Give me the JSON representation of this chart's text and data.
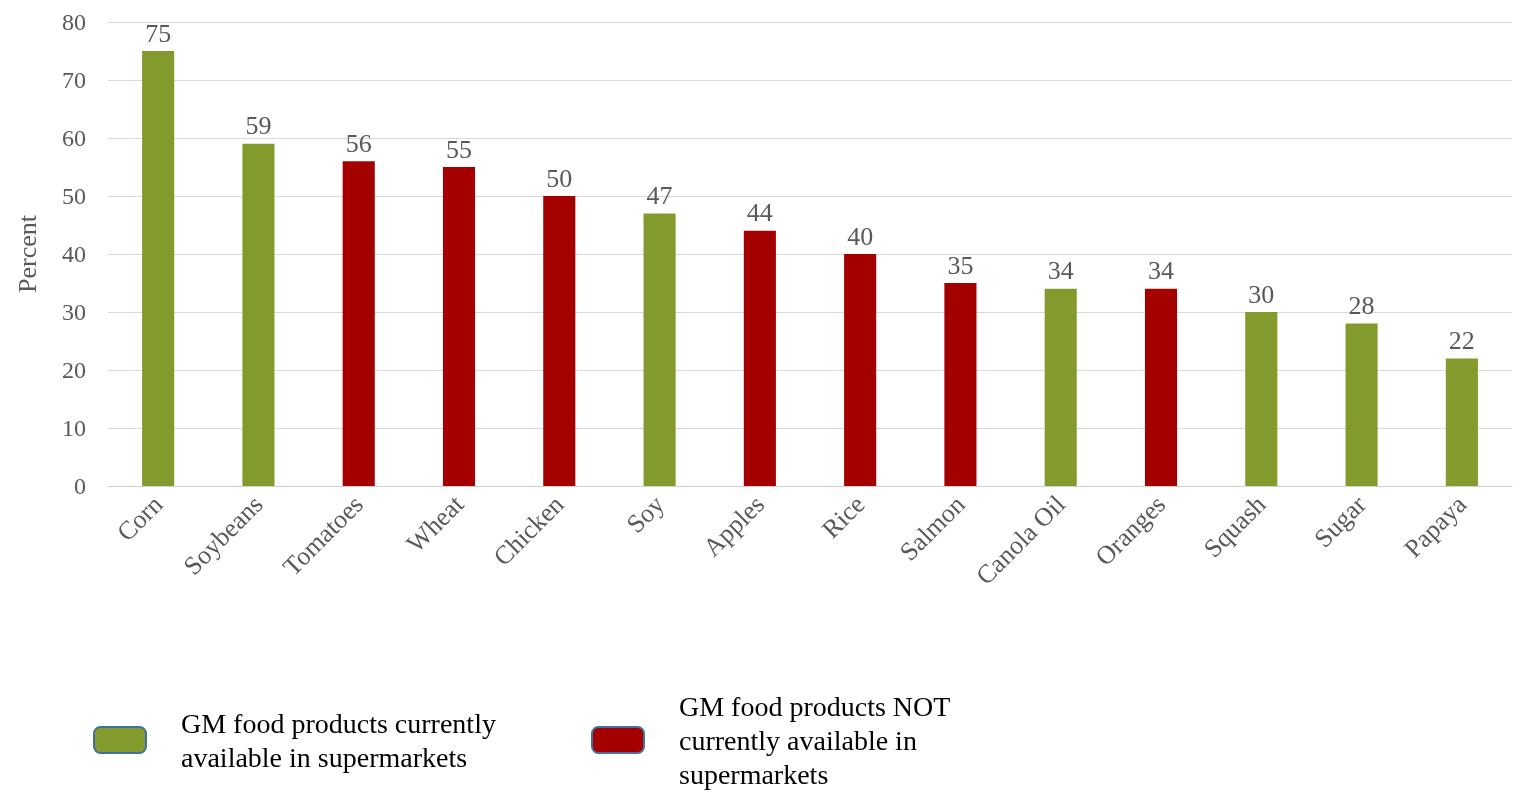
{
  "chart_data": {
    "type": "bar",
    "ylabel": "Percent",
    "categories": [
      "Corn",
      "Soybeans",
      "Tomatoes",
      "Wheat",
      "Chicken",
      "Soy",
      "Apples",
      "Rice",
      "Salmon",
      "Canola Oil",
      "Oranges",
      "Squash",
      "Sugar",
      "Papaya"
    ],
    "series": [
      {
        "name": "GM food products currently available in supermarkets",
        "color": "#829b2c",
        "values": [
          75,
          59,
          null,
          null,
          null,
          47,
          null,
          null,
          null,
          34,
          null,
          30,
          28,
          22
        ]
      },
      {
        "name": "GM food products NOT currently available in supermarkets",
        "color": "#a50000",
        "values": [
          null,
          null,
          56,
          55,
          50,
          null,
          44,
          40,
          35,
          null,
          34,
          null,
          null,
          null
        ]
      }
    ],
    "stacked": true,
    "ylim": [
      0,
      80
    ],
    "yticks": [
      0,
      10,
      20,
      30,
      40,
      50,
      60,
      70,
      80
    ],
    "grid": "y",
    "data_labels": true,
    "legend": "bottom left"
  }
}
